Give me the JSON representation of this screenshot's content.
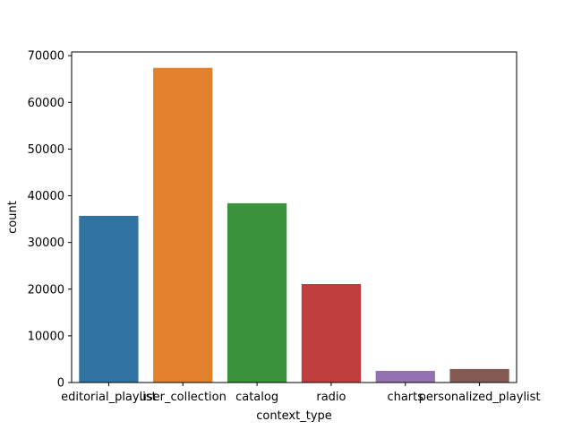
{
  "chart_data": {
    "type": "bar",
    "title": "",
    "xlabel": "context_type",
    "ylabel": "count",
    "categories": [
      "editorial_playlist",
      "user_collection",
      "catalog",
      "radio",
      "charts",
      "personalized_playlist"
    ],
    "values": [
      35700,
      67400,
      38400,
      21100,
      2500,
      2900
    ],
    "colors": [
      "#3274a1",
      "#e1812c",
      "#3a923a",
      "#c03d3e",
      "#9372b2",
      "#845b53"
    ],
    "yticks": [
      0,
      10000,
      20000,
      30000,
      40000,
      50000,
      60000,
      70000
    ],
    "ylim": [
      0,
      70800
    ],
    "grid": false,
    "legend": "none"
  }
}
